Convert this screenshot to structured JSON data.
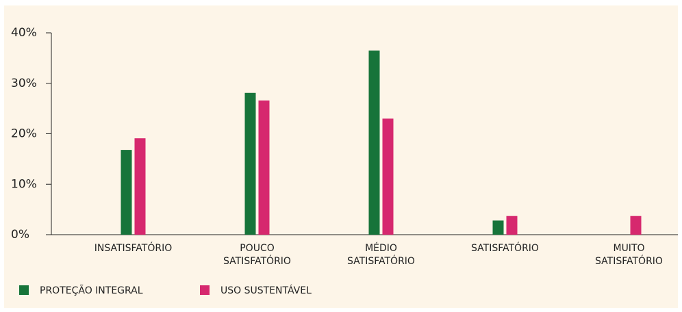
{
  "chart_data": {
    "type": "bar",
    "categories": [
      "INSATISFATÓRIO",
      "POUCO\nSATISFATÓRIO",
      "MÉDIO\nSATISFATÓRIO",
      "SATISFATÓRIO",
      "MUITO\nSATISFATÓRIO"
    ],
    "series": [
      {
        "name": "PROTEÇÃO INTEGRAL",
        "color": "#17743a",
        "values": [
          16.8,
          28.1,
          36.5,
          2.8,
          0
        ]
      },
      {
        "name": "USO SUSTENTÁVEL",
        "color": "#d6286e",
        "values": [
          19.1,
          26.6,
          23.0,
          3.7,
          3.7
        ]
      }
    ],
    "ylim": [
      0,
      40
    ],
    "yticks": [
      {
        "value": 0,
        "label": "0%"
      },
      {
        "value": 10,
        "label": "10%"
      },
      {
        "value": 20,
        "label": "20%"
      },
      {
        "value": 30,
        "label": "30%"
      },
      {
        "value": 40,
        "label": "40%"
      }
    ],
    "legend": "bottom-left"
  }
}
